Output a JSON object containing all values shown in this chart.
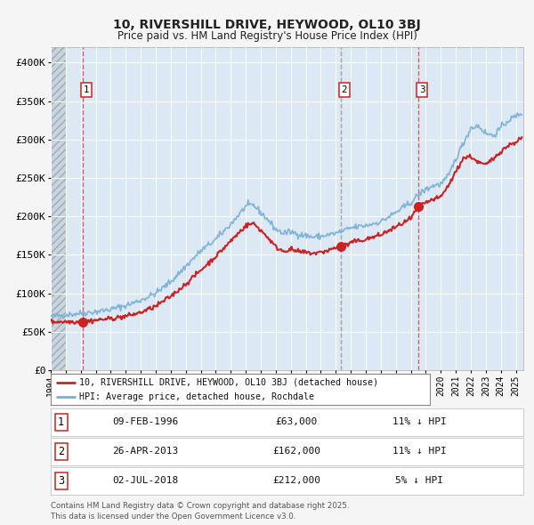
{
  "title1": "10, RIVERSHILL DRIVE, HEYWOOD, OL10 3BJ",
  "title2": "Price paid vs. HM Land Registry's House Price Index (HPI)",
  "fig_bg_color": "#f5f5f5",
  "plot_bg_color": "#dce9f5",
  "grid_color": "#ffffff",
  "ylim_max": 420000,
  "yticks": [
    0,
    50000,
    100000,
    150000,
    200000,
    250000,
    300000,
    350000,
    400000
  ],
  "ytick_labels": [
    "£0",
    "£50K",
    "£100K",
    "£150K",
    "£200K",
    "£250K",
    "£300K",
    "£350K",
    "£400K"
  ],
  "xmin": 1994,
  "xmax": 2025.5,
  "transactions": [
    {
      "label": 1,
      "year": 1996.12,
      "price": 63000,
      "line_style": "dashed_red"
    },
    {
      "label": 2,
      "year": 2013.32,
      "price": 162000,
      "line_style": "dashed_gray"
    },
    {
      "label": 3,
      "year": 2018.5,
      "price": 212000,
      "line_style": "dashed_red"
    }
  ],
  "legend_entries": [
    {
      "color": "#cc2222",
      "label": "10, RIVERSHILL DRIVE, HEYWOOD, OL10 3BJ (detached house)"
    },
    {
      "color": "#7ab0d4",
      "label": "HPI: Average price, detached house, Rochdale"
    }
  ],
  "table_rows": [
    {
      "num": 1,
      "date": "09-FEB-1996",
      "price": "£63,000",
      "hpi": "11% ↓ HPI"
    },
    {
      "num": 2,
      "date": "26-APR-2013",
      "price": "£162,000",
      "hpi": "11% ↓ HPI"
    },
    {
      "num": 3,
      "date": "02-JUL-2018",
      "price": "£212,000",
      "hpi": "5% ↓ HPI"
    }
  ],
  "footer": "Contains HM Land Registry data © Crown copyright and database right 2025.\nThis data is licensed under the Open Government Licence v3.0.",
  "hpi_color": "#7ab0d4",
  "price_color": "#cc2222",
  "marker_color": "#cc2222",
  "dashed_red": "#e05050",
  "dashed_gray": "#999999"
}
